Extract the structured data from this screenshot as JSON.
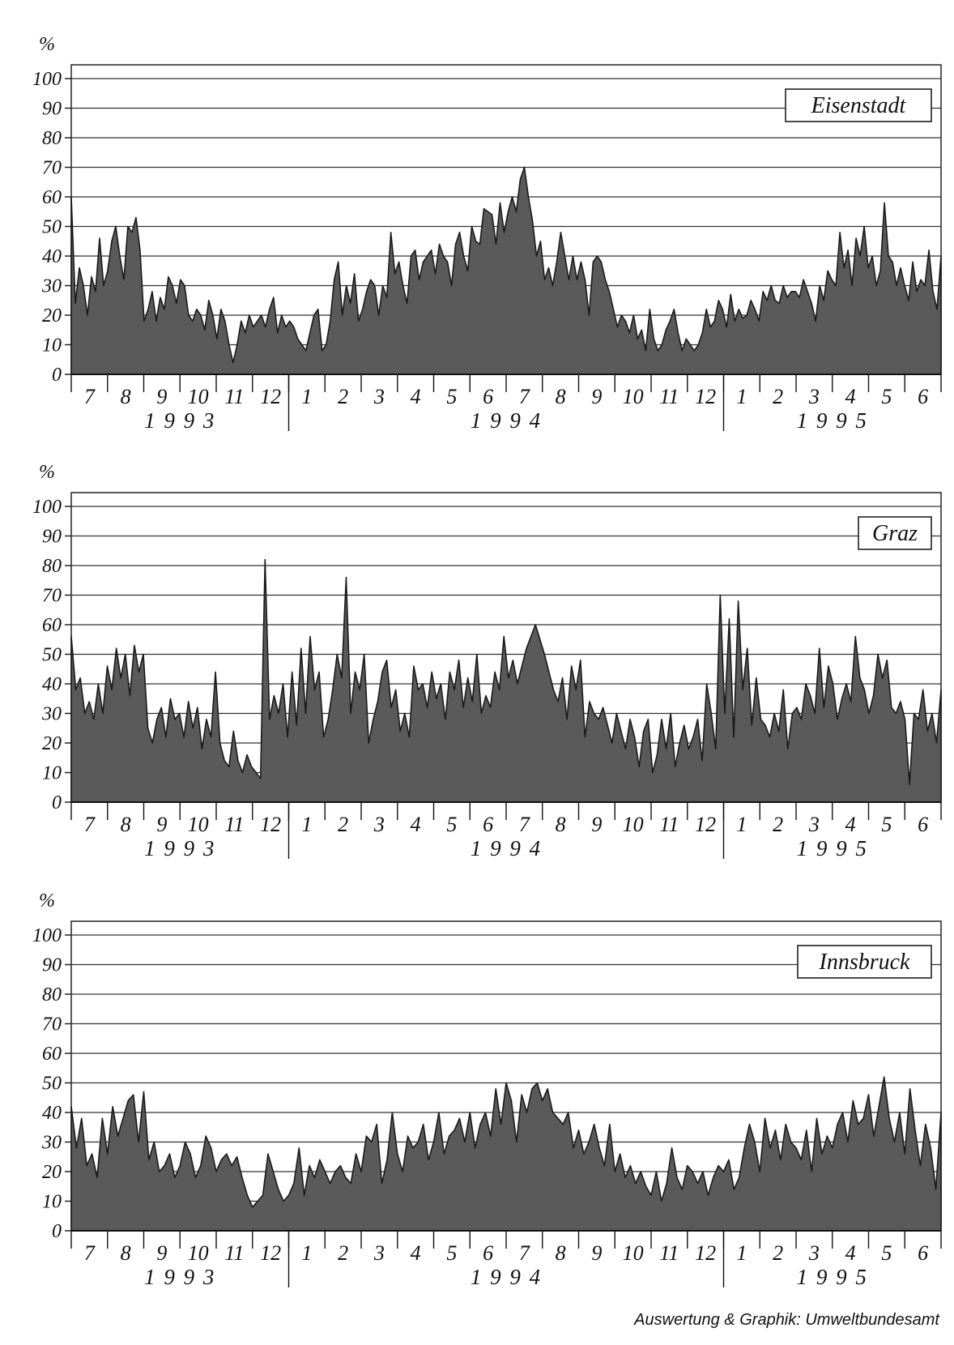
{
  "credit": "Auswertung & Graphik: Umweltbundesamt",
  "chart_data": [
    {
      "type": "area",
      "station": "Eisenstadt",
      "ylabel": "%",
      "ylim": [
        0,
        100
      ],
      "yticks": [
        0,
        10,
        20,
        30,
        40,
        50,
        60,
        70,
        80,
        90,
        100
      ],
      "month_labels": [
        "7",
        "8",
        "9",
        "10",
        "11",
        "12",
        "1",
        "2",
        "3",
        "4",
        "5",
        "6",
        "7",
        "8",
        "9",
        "10",
        "11",
        "12",
        "1",
        "2",
        "3",
        "4",
        "5",
        "6"
      ],
      "year_labels": [
        "1 9 9 3",
        "1 9 9 4",
        "1 9 9 5"
      ],
      "grid": true,
      "legend": "top-right",
      "x_start": "1993-07",
      "x_step": "0.5 month",
      "values": [
        60,
        24,
        36,
        30,
        20,
        33,
        28,
        46,
        30,
        35,
        45,
        50,
        40,
        32,
        50,
        48,
        53,
        42,
        18,
        22,
        28,
        18,
        26,
        22,
        33,
        30,
        24,
        32,
        30,
        20,
        18,
        22,
        20,
        15,
        25,
        20,
        12,
        22,
        18,
        10,
        4,
        10,
        18,
        14,
        20,
        16,
        18,
        20,
        16,
        22,
        26,
        14,
        20,
        16,
        18,
        16,
        12,
        10,
        8,
        14,
        20,
        22,
        8,
        10,
        18,
        32,
        38,
        20,
        30,
        24,
        34,
        18,
        22,
        28,
        32,
        30,
        20,
        30,
        26,
        48,
        34,
        38,
        30,
        24,
        40,
        42,
        32,
        38,
        40,
        42,
        34,
        44,
        40,
        38,
        30,
        44,
        48,
        40,
        35,
        50,
        45,
        44,
        56,
        55,
        54,
        44,
        58,
        48,
        55,
        60,
        55,
        66,
        70,
        60,
        52,
        40,
        45,
        32,
        36,
        30,
        38,
        48,
        40,
        32,
        40,
        32,
        38,
        32,
        20,
        38,
        40,
        38,
        32,
        28,
        22,
        16,
        20,
        18,
        14,
        20,
        12,
        15,
        8,
        22,
        12,
        8,
        10,
        15,
        18,
        22,
        14,
        8,
        12,
        10,
        8,
        10,
        14,
        22,
        16,
        18,
        25,
        22,
        16,
        27,
        18,
        22,
        19,
        20,
        25,
        22,
        18,
        28,
        25,
        30,
        25,
        24,
        30,
        26,
        28,
        28,
        26,
        32,
        28,
        24,
        18,
        30,
        25,
        35,
        32,
        30,
        48,
        36,
        42,
        30,
        46,
        40,
        50,
        36,
        40,
        30,
        35,
        58,
        40,
        38,
        30,
        36,
        30,
        25,
        38,
        28,
        32,
        30,
        42,
        28,
        22,
        40
      ]
    },
    {
      "type": "area",
      "station": "Graz",
      "ylabel": "%",
      "ylim": [
        0,
        100
      ],
      "yticks": [
        0,
        10,
        20,
        30,
        40,
        50,
        60,
        70,
        80,
        90,
        100
      ],
      "month_labels": [
        "7",
        "8",
        "9",
        "10",
        "11",
        "12",
        "1",
        "2",
        "3",
        "4",
        "5",
        "6",
        "7",
        "8",
        "9",
        "10",
        "11",
        "12",
        "1",
        "2",
        "3",
        "4",
        "5",
        "6"
      ],
      "year_labels": [
        "1 9 9 3",
        "1 9 9 4",
        "1 9 9 5"
      ],
      "grid": true,
      "legend": "top-right",
      "x_start": "1993-07",
      "x_step": "0.5 month",
      "values": [
        56,
        38,
        42,
        30,
        34,
        28,
        40,
        30,
        46,
        38,
        52,
        42,
        50,
        36,
        53,
        44,
        50,
        25,
        20,
        28,
        32,
        22,
        35,
        28,
        30,
        22,
        34,
        25,
        32,
        18,
        28,
        22,
        44,
        20,
        14,
        12,
        24,
        14,
        10,
        16,
        12,
        10,
        8,
        82,
        28,
        36,
        30,
        40,
        22,
        44,
        26,
        52,
        30,
        56,
        38,
        44,
        22,
        28,
        38,
        50,
        42,
        76,
        30,
        44,
        38,
        50,
        20,
        28,
        34,
        44,
        48,
        32,
        38,
        24,
        30,
        22,
        46,
        38,
        40,
        32,
        44,
        35,
        40,
        28,
        44,
        38,
        48,
        32,
        42,
        34,
        50,
        30,
        36,
        32,
        44,
        38,
        56,
        42,
        48,
        40,
        46,
        52,
        56,
        60,
        55,
        50,
        44,
        38,
        34,
        42,
        28,
        46,
        38,
        48,
        22,
        34,
        30,
        28,
        32,
        26,
        20,
        30,
        24,
        18,
        28,
        22,
        12,
        24,
        28,
        10,
        16,
        28,
        18,
        30,
        12,
        20,
        26,
        18,
        22,
        28,
        14,
        40,
        30,
        18,
        70,
        30,
        62,
        22,
        68,
        38,
        52,
        26,
        42,
        28,
        26,
        22,
        30,
        24,
        38,
        18,
        30,
        32,
        28,
        40,
        36,
        30,
        52,
        32,
        46,
        40,
        28,
        35,
        40,
        34,
        56,
        42,
        38,
        30,
        36,
        50,
        42,
        48,
        32,
        30,
        34,
        28,
        6,
        30,
        28,
        38,
        24,
        30,
        20,
        38
      ]
    },
    {
      "type": "area",
      "station": "Innsbruck",
      "ylabel": "%",
      "ylim": [
        0,
        100
      ],
      "yticks": [
        0,
        10,
        20,
        30,
        40,
        50,
        60,
        70,
        80,
        90,
        100
      ],
      "month_labels": [
        "7",
        "8",
        "9",
        "10",
        "11",
        "12",
        "1",
        "2",
        "3",
        "4",
        "5",
        "6",
        "7",
        "8",
        "9",
        "10",
        "11",
        "12",
        "1",
        "2",
        "3",
        "4",
        "5",
        "6"
      ],
      "year_labels": [
        "1 9 9 3",
        "1 9 9 4",
        "1 9 9 5"
      ],
      "grid": true,
      "legend": "top-right",
      "x_start": "1993-07",
      "x_step": "0.5 month",
      "values": [
        42,
        28,
        38,
        22,
        26,
        18,
        38,
        26,
        42,
        32,
        38,
        44,
        46,
        30,
        47,
        24,
        30,
        20,
        22,
        26,
        18,
        22,
        30,
        26,
        18,
        22,
        32,
        28,
        20,
        24,
        26,
        22,
        25,
        18,
        12,
        8,
        10,
        12,
        26,
        20,
        14,
        10,
        12,
        16,
        28,
        12,
        22,
        18,
        24,
        20,
        16,
        20,
        22,
        18,
        16,
        26,
        20,
        32,
        30,
        36,
        16,
        24,
        40,
        26,
        20,
        32,
        28,
        30,
        36,
        24,
        30,
        40,
        26,
        32,
        34,
        38,
        30,
        40,
        28,
        36,
        40,
        32,
        48,
        36,
        50,
        44,
        30,
        46,
        40,
        48,
        50,
        44,
        48,
        40,
        38,
        36,
        40,
        28,
        34,
        26,
        30,
        36,
        28,
        22,
        36,
        20,
        26,
        18,
        22,
        16,
        20,
        15,
        12,
        20,
        10,
        16,
        28,
        18,
        14,
        22,
        20,
        16,
        20,
        12,
        18,
        22,
        20,
        24,
        14,
        18,
        28,
        36,
        30,
        20,
        38,
        28,
        34,
        24,
        36,
        30,
        28,
        24,
        34,
        20,
        38,
        26,
        32,
        28,
        36,
        40,
        30,
        44,
        36,
        38,
        46,
        32,
        42,
        52,
        38,
        30,
        40,
        26,
        48,
        34,
        22,
        36,
        28,
        14,
        40
      ]
    }
  ]
}
